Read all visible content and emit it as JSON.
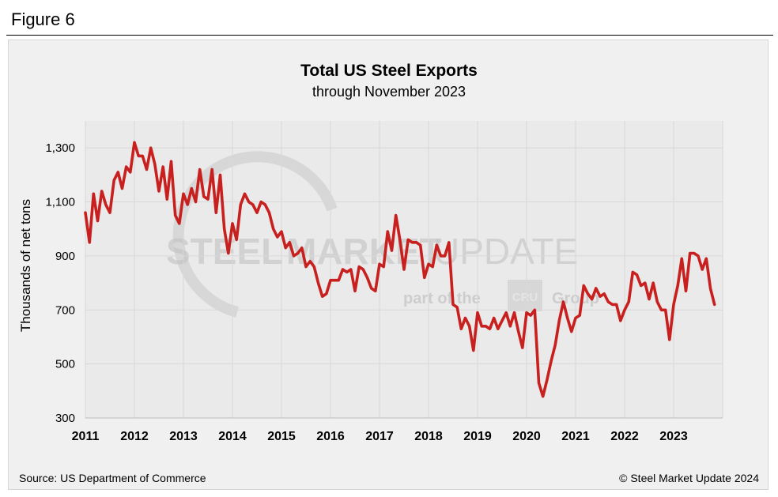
{
  "figure_label": "Figure 6",
  "source": "Source: US Department of Commerce",
  "copyright": "© Steel Market Update 2024",
  "watermark": {
    "line1_bold": "STEEL",
    "line1_mid": "MARKET",
    "line1_light": "UPDATE",
    "line2_a": "part of the",
    "line2_logo": "CRU",
    "line2_b": "Group"
  },
  "colors": {
    "line": "#c8201e",
    "grid": "#d8d8d8",
    "plot_bg": "#eaeaea"
  },
  "chart_data": {
    "type": "line",
    "title": "Total US Steel Exports",
    "subtitle": "through November 2023",
    "xlabel": "",
    "ylabel": "Thousands of net tons",
    "ylim": [
      300,
      1400
    ],
    "yticks": [
      300,
      500,
      700,
      900,
      1100,
      1300
    ],
    "ytick_labels": [
      "300",
      "500",
      "700",
      "900",
      "1,100",
      "1,300"
    ],
    "xticks": [
      "2011",
      "2012",
      "2013",
      "2014",
      "2015",
      "2016",
      "2017",
      "2018",
      "2019",
      "2020",
      "2021",
      "2022",
      "2023"
    ],
    "x_start": "2011-01",
    "x_end": "2023-11",
    "series": [
      {
        "name": "Total US Steel Exports",
        "frequency": "monthly",
        "values": [
          1060,
          950,
          1130,
          1030,
          1140,
          1090,
          1060,
          1180,
          1210,
          1150,
          1230,
          1210,
          1320,
          1270,
          1270,
          1220,
          1300,
          1240,
          1140,
          1230,
          1110,
          1250,
          1050,
          1020,
          1130,
          1090,
          1150,
          1100,
          1220,
          1120,
          1110,
          1220,
          1060,
          1200,
          1000,
          910,
          1020,
          960,
          1090,
          1130,
          1100,
          1090,
          1060,
          1100,
          1090,
          1060,
          1000,
          970,
          990,
          930,
          950,
          900,
          910,
          930,
          860,
          880,
          860,
          800,
          750,
          760,
          810,
          810,
          810,
          850,
          840,
          850,
          770,
          860,
          850,
          820,
          780,
          770,
          870,
          860,
          990,
          920,
          1050,
          960,
          850,
          960,
          950,
          950,
          940,
          820,
          870,
          860,
          940,
          900,
          900,
          950,
          720,
          710,
          630,
          670,
          640,
          550,
          690,
          640,
          640,
          630,
          670,
          630,
          660,
          690,
          640,
          690,
          620,
          560,
          690,
          680,
          700,
          430,
          380,
          440,
          510,
          570,
          660,
          730,
          670,
          620,
          670,
          680,
          790,
          760,
          740,
          780,
          750,
          760,
          730,
          720,
          720,
          660,
          700,
          730,
          840,
          830,
          790,
          800,
          740,
          800,
          730,
          700,
          700,
          590,
          720,
          790,
          890,
          770,
          910,
          910,
          900,
          850,
          890,
          780,
          720
        ]
      }
    ]
  }
}
